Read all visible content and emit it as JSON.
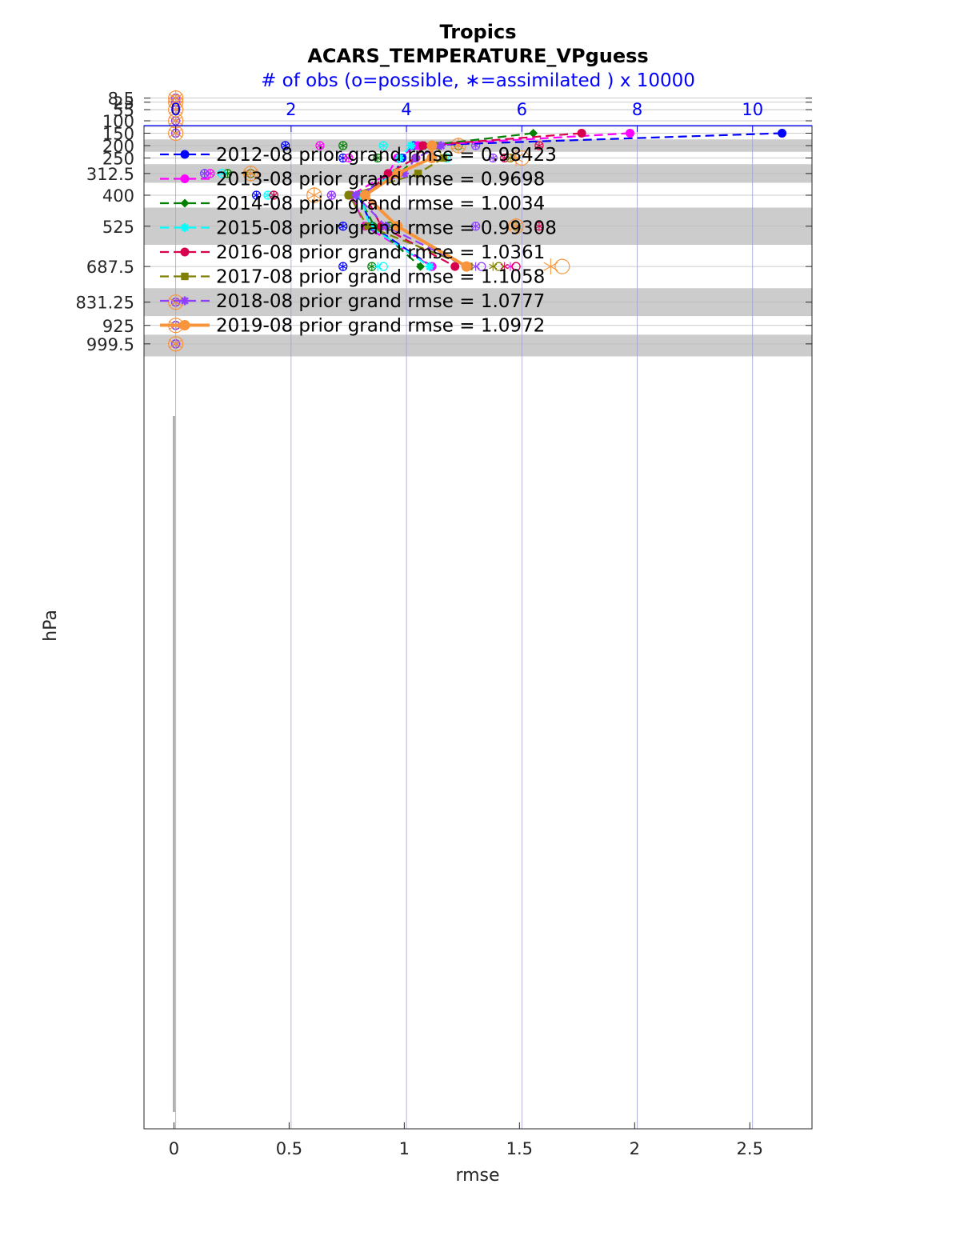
{
  "chart_data": {
    "type": "line",
    "title": "Tropics",
    "subtitle": "ACARS_TEMPERATURE_VPguess",
    "top_axis_label": "# of obs (o=possible, ∗=assimilated ) x 10000",
    "xlabel": "rmse",
    "ylabel": "hPa",
    "xlim": [
      -0.13,
      2.77
    ],
    "top_xlim": [
      -0.55,
      11.03
    ],
    "x_ticks": [
      "0",
      "0.5",
      "1",
      "1.5",
      "2",
      "2.5"
    ],
    "x_tick_values": [
      0,
      0.5,
      1,
      1.5,
      2,
      2.5
    ],
    "top_x_ticks": [
      "0",
      "2",
      "4",
      "6",
      "8",
      "10"
    ],
    "top_x_tick_values": [
      0,
      2,
      4,
      6,
      8,
      10
    ],
    "y_ticks": [
      "8.5",
      "25",
      "55",
      "100",
      "150",
      "200",
      "250",
      "312.5",
      "400",
      "525",
      "687.5",
      "831.25",
      "925",
      "999.5"
    ],
    "levels": [
      8.5,
      25,
      55,
      100,
      150,
      200,
      250,
      312.5,
      400,
      525,
      687.5,
      831.25,
      925,
      999.5
    ],
    "ylim": [
      0,
      1050
    ],
    "y_reversed": true,
    "grid": true,
    "shaded_layer_bands_hPa": [
      [
        20,
        35
      ],
      [
        80,
        125
      ],
      [
        175,
        225
      ],
      [
        275,
        350
      ],
      [
        450,
        600
      ],
      [
        775,
        887.5
      ],
      [
        962.5,
        1050
      ]
    ],
    "legend_position": "top-left",
    "colors": {
      "axis_top": "#0000ff",
      "shade": "#cccccc",
      "grid": "#a0a0d8"
    },
    "series": [
      {
        "name": "2012-08 prior grand rmse = 0.98423",
        "color": "#0000ff",
        "dash": true,
        "marker": "circle",
        "rmse": {
          "150": 2.64,
          "200": 1.04,
          "250": 0.99,
          "312.5": 0.96,
          "400": 0.8,
          "525": 0.86,
          "687.5": 1.12
        },
        "possible_x10000": {
          "200": 1.9,
          "250": 2.9,
          "312.5": 0.5,
          "400": 1.4,
          "525": 2.9,
          "687.5": 2.9
        },
        "assimilated_x10000": {
          "200": 1.9,
          "250": 2.9,
          "312.5": 0.5,
          "400": 1.4,
          "525": 2.9,
          "687.5": 2.9
        }
      },
      {
        "name": "2013-08 prior grand rmse = 0.9698",
        "color": "#ff00ff",
        "dash": true,
        "marker": "circle",
        "rmse": {
          "150": 1.98,
          "200": 1.06,
          "250": 0.97,
          "312.5": 0.93,
          "400": 0.77,
          "525": 0.83,
          "687.5": 1.12
        },
        "possible_x10000": {
          "200": 2.5,
          "250": 3.0,
          "312.5": 0.6,
          "400": 2.7,
          "525": 3.4,
          "687.5": 5.9
        },
        "assimilated_x10000": {
          "200": 2.5,
          "250": 3.0,
          "312.5": 0.6,
          "400": 2.7,
          "525": 3.4,
          "687.5": 5.8
        }
      },
      {
        "name": "2014-08 prior grand rmse = 1.0034",
        "color": "#007f00",
        "dash": true,
        "marker": "diamond",
        "rmse": {
          "150": 1.56,
          "200": 1.09,
          "250": 1.05,
          "312.5": 0.98,
          "400": 0.8,
          "525": 0.87,
          "687.5": 1.07
        },
        "possible_x10000": {
          "200": 2.9,
          "250": 3.5,
          "312.5": 0.9,
          "400": 1.7,
          "525": 3.7,
          "687.5": 3.4
        },
        "assimilated_x10000": {
          "200": 2.9,
          "250": 3.5,
          "312.5": 0.9,
          "400": 1.7,
          "525": 3.7,
          "687.5": 3.4
        }
      },
      {
        "name": "2015-08 prior grand rmse = 0.99308",
        "color": "#00ffff",
        "dash": true,
        "marker": "star",
        "rmse": {
          "150": 0.0,
          "200": 1.03,
          "250": 0.98,
          "312.5": 0.96,
          "400": 0.81,
          "525": 0.85,
          "687.5": 1.11
        },
        "possible_x10000": {
          "200": 3.6,
          "250": 4.7,
          "312.5": 0.8,
          "400": 1.6,
          "525": 3.4,
          "687.5": 3.6
        },
        "assimilated_x10000": {
          "200": 3.6,
          "250": 4.7,
          "312.5": 0.8,
          "400": 1.6,
          "525": 3.4,
          "687.5": 3.5
        }
      },
      {
        "name": "2016-08 prior grand rmse = 1.0361",
        "color": "#d7004f",
        "dash": true,
        "marker": "circle",
        "rmse": {
          "150": 1.77,
          "200": 1.08,
          "250": 1.05,
          "312.5": 0.93,
          "400": 0.83,
          "525": 0.9,
          "687.5": 1.22
        },
        "possible_x10000": {
          "200": 6.3,
          "250": 5.7,
          "312.5": 1.3,
          "400": 1.7,
          "525": 6.3,
          "687.5": 5.9
        },
        "assimilated_x10000": {
          "200": 6.3,
          "250": 5.7,
          "312.5": 1.3,
          "400": 1.7,
          "525": 6.3,
          "687.5": 5.7
        }
      },
      {
        "name": "2017-08 prior grand rmse = 1.1058",
        "color": "#7f7f00",
        "dash": true,
        "marker": "square",
        "rmse": {
          "150": 0.0,
          "200": 1.14,
          "250": 1.17,
          "312.5": 1.06,
          "400": 0.76,
          "525": 0.84,
          "687.5": 1.28
        },
        "possible_x10000": {
          "200": 4.9,
          "250": 5.8,
          "312.5": 1.3,
          "400": 3.0,
          "525": 5.9,
          "687.5": 5.6
        },
        "assimilated_x10000": {
          "200": 4.9,
          "250": 5.8,
          "312.5": 1.3,
          "400": 3.0,
          "525": 5.9,
          "687.5": 5.5
        }
      },
      {
        "name": "2018-08 prior grand rmse = 1.0777",
        "color": "#8f3fff",
        "dash": true,
        "marker": "star",
        "rmse": {
          "150": 0.0,
          "200": 1.16,
          "250": 1.05,
          "312.5": 1.0,
          "400": 0.79,
          "525": 0.92,
          "687.5": 1.27
        },
        "possible_x10000": {
          "200": 5.2,
          "250": 5.5,
          "312.5": 0.5,
          "400": 2.7,
          "525": 5.2,
          "687.5": 5.3
        },
        "assimilated_x10000": {
          "200": 5.2,
          "250": 5.5,
          "312.5": 0.5,
          "400": 2.7,
          "525": 5.2,
          "687.5": 5.2
        }
      },
      {
        "name": "2019-08 prior grand rmse = 1.0972",
        "color": "#f7943c",
        "dash": false,
        "marker": "circle",
        "rmse": {
          "150": 0.0,
          "200": 1.12,
          "250": 1.12,
          "312.5": 0.97,
          "400": 0.83,
          "525": 0.97,
          "687.5": 1.27
        },
        "possible_x10000": {
          "200": 4.9,
          "250": 6.0,
          "312.5": 1.3,
          "400": 2.4,
          "525": 5.9,
          "687.5": 6.7
        },
        "assimilated_x10000": {
          "200": 4.9,
          "250": 5.9,
          "312.5": 1.3,
          "400": 2.4,
          "525": 5.9,
          "687.5": 6.5
        }
      }
    ]
  }
}
